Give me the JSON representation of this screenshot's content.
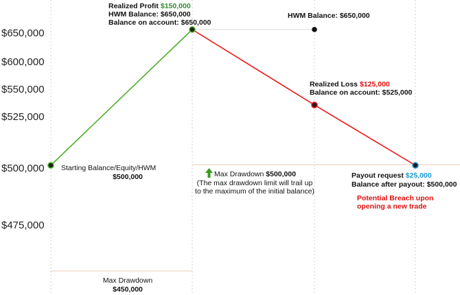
{
  "chart_data": {
    "type": "line",
    "y_ticks": [
      "$650,000",
      "$600,000",
      "$550,000",
      "$525,000",
      "$500,000",
      "$475,000"
    ],
    "series": [
      {
        "color": "#4caf2a",
        "points": [
          {
            "step": 0,
            "balance": 500000
          },
          {
            "step": 1,
            "balance": 650000
          }
        ]
      },
      {
        "color": "#ee1111",
        "points": [
          {
            "step": 1,
            "balance": 650000
          },
          {
            "step": 2,
            "balance": 525000
          },
          {
            "step": 3,
            "balance": 500000
          }
        ]
      }
    ],
    "hwm_marker": {
      "step": 2,
      "balance": 650000
    },
    "grid": "vertical dotted"
  },
  "annotations": {
    "start": {
      "label": "Starting Balance/Equity/HWM",
      "value": "$500,000"
    },
    "profit": {
      "label": "Realized Profit",
      "amount": "$150,000",
      "hwm": "HWM Balance: $650,000",
      "balance": "Balance on account: $650,000"
    },
    "hwm": "HWM Balance: $650,000",
    "loss": {
      "label": "Realized Loss",
      "amount": "$125,000",
      "balance": "Balance on account: $525,000"
    },
    "payout": {
      "label": "Payout request",
      "amount": "$25,000",
      "balance": "Balance after payout: $500,000"
    },
    "breach": [
      "Potential Breach upon",
      "opening a new trade"
    ],
    "max_dd_mid": {
      "label": "Max Drawdown",
      "value": "$500,000",
      "note1": "(The max drawdown limit will trail up",
      "note2": "to the maximum of the initial balance)"
    },
    "max_dd_low": {
      "label": "Max Drawdown",
      "value": "$450,000"
    }
  },
  "colors": {
    "gain": "#4caf2a",
    "loss": "#ee1111",
    "payout": "#1a9bd7",
    "level": "#f2c9b8",
    "grid": "#cfcfcf"
  }
}
